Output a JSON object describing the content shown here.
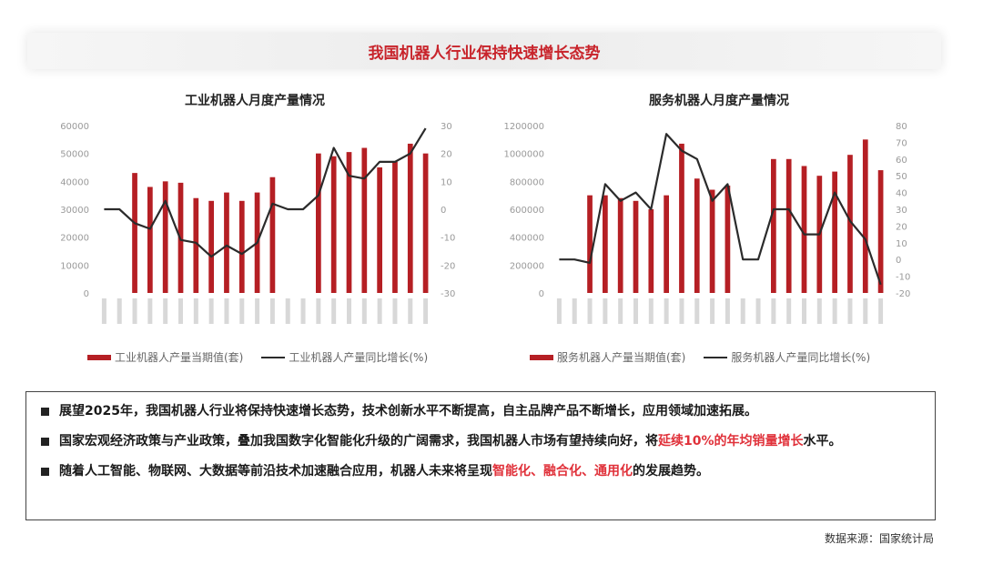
{
  "page": {
    "title": "我国机器人行业保持快速增长态势",
    "source": "数据来源：国家统计局"
  },
  "summary": {
    "bullets": [
      {
        "segments": [
          {
            "text": "展望2025年，我国机器人行业将保持快速增长态势，技术创新水平不断提高，自主品牌产品不断增长，应用领域加速拓展。",
            "highlight": false
          }
        ]
      },
      {
        "segments": [
          {
            "text": "国家宏观经济政策与产业政策，叠加我国数字化智能化升级的广阔需求，我国机器人市场有望持续向好，将",
            "highlight": false
          },
          {
            "text": "延续10%的年均销量增长",
            "highlight": true
          },
          {
            "text": "水平。",
            "highlight": false
          }
        ]
      },
      {
        "segments": [
          {
            "text": "随着人工智能、物联网、大数据等前沿技术加速融合应用，机器人未来将呈现",
            "highlight": false
          },
          {
            "text": "智能化、融合化、通用化",
            "highlight": true
          },
          {
            "text": "的发展趋势。",
            "highlight": false
          }
        ]
      }
    ]
  },
  "colors": {
    "bar": "#b51f24",
    "line": "#2b2b2b",
    "highlight": "#e0313a",
    "title": "#c8242b"
  },
  "chart_data": [
    {
      "type": "bar",
      "title": "工业机器人月度产量情况",
      "y_left": {
        "min": 0,
        "max": 60000,
        "ticks": [
          0,
          10000,
          20000,
          30000,
          40000,
          50000,
          60000
        ]
      },
      "y_right": {
        "min": -30,
        "max": 30,
        "ticks": [
          -30,
          -20,
          -10,
          0,
          10,
          20,
          30
        ]
      },
      "grid": false,
      "legend_position": "bottom",
      "series": [
        {
          "name": "工业机器人产量当期值(套)",
          "kind": "bar",
          "axis": "left",
          "values": [
            null,
            null,
            43000,
            38000,
            40000,
            39500,
            34000,
            33000,
            36000,
            33000,
            36000,
            41500,
            null,
            null,
            50000,
            49000,
            50500,
            52000,
            45000,
            47000,
            53500,
            50000
          ]
        },
        {
          "name": "工业机器人产量同比增长(%)",
          "kind": "line",
          "axis": "right",
          "values": [
            0,
            0,
            -5,
            -7,
            3,
            -11,
            -12,
            -17,
            -13,
            -16,
            -12,
            2,
            0,
            0,
            5,
            22,
            12,
            11,
            17,
            17,
            20,
            29
          ]
        }
      ]
    },
    {
      "type": "bar",
      "title": "服务机器人月度产量情况",
      "y_left": {
        "min": 0,
        "max": 1200000,
        "ticks": [
          0,
          200000,
          400000,
          600000,
          800000,
          1000000,
          1200000
        ]
      },
      "y_right": {
        "min": -20,
        "max": 80,
        "ticks": [
          -20,
          -10,
          0,
          10,
          20,
          30,
          40,
          50,
          60,
          70,
          80
        ]
      },
      "grid": false,
      "legend_position": "bottom",
      "series": [
        {
          "name": "服务机器人产量当期值(套)",
          "kind": "bar",
          "axis": "left",
          "values": [
            null,
            null,
            700000,
            700000,
            680000,
            660000,
            600000,
            700000,
            1070000,
            820000,
            740000,
            770000,
            null,
            null,
            960000,
            960000,
            910000,
            840000,
            870000,
            990000,
            1100000,
            880000
          ]
        },
        {
          "name": "服务机器人产量同比增长(%)",
          "kind": "line",
          "axis": "right",
          "values": [
            0,
            0,
            -2,
            45,
            35,
            40,
            30,
            75,
            65,
            60,
            35,
            45,
            0,
            0,
            30,
            30,
            15,
            15,
            40,
            23,
            12,
            -15
          ]
        }
      ]
    }
  ]
}
